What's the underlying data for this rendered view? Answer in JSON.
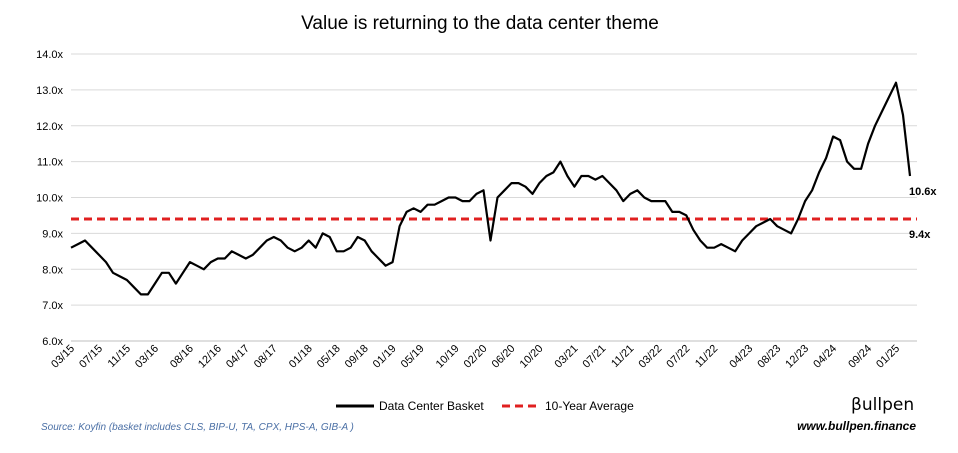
{
  "chart_data": {
    "type": "line",
    "title": "Value is returning to the data center theme",
    "xlabel": "",
    "ylabel": "",
    "y_ticks": [
      "6.0x",
      "7.0x",
      "8.0x",
      "9.0x",
      "10.0x",
      "11.0x",
      "12.0x",
      "13.0x",
      "14.0x"
    ],
    "ylim": [
      6.0,
      14.0
    ],
    "x_ticks": [
      "03/15",
      "07/15",
      "11/15",
      "03/16",
      "08/16",
      "12/16",
      "04/17",
      "08/17",
      "01/18",
      "05/18",
      "09/18",
      "01/19",
      "05/19",
      "10/19",
      "02/20",
      "06/20",
      "10/20",
      "03/21",
      "07/21",
      "11/21",
      "03/22",
      "07/22",
      "11/22",
      "04/23",
      "08/23",
      "12/23",
      "04/24",
      "09/24",
      "01/25"
    ],
    "x_range": [
      "2015-03",
      "2025-04"
    ],
    "grid": "horizontal",
    "legend_position": "bottom",
    "series": [
      {
        "name": "Data Center Basket",
        "color": "#000000",
        "style": "solid",
        "points": [
          [
            "2015-03",
            8.6
          ],
          [
            "2015-04",
            8.7
          ],
          [
            "2015-05",
            8.8
          ],
          [
            "2015-06",
            8.6
          ],
          [
            "2015-07",
            8.4
          ],
          [
            "2015-08",
            8.2
          ],
          [
            "2015-09",
            7.9
          ],
          [
            "2015-10",
            7.8
          ],
          [
            "2015-11",
            7.7
          ],
          [
            "2015-12",
            7.5
          ],
          [
            "2016-01",
            7.3
          ],
          [
            "2016-02",
            7.3
          ],
          [
            "2016-03",
            7.6
          ],
          [
            "2016-04",
            7.9
          ],
          [
            "2016-05",
            7.9
          ],
          [
            "2016-06",
            7.6
          ],
          [
            "2016-07",
            7.9
          ],
          [
            "2016-08",
            8.2
          ],
          [
            "2016-09",
            8.1
          ],
          [
            "2016-10",
            8.0
          ],
          [
            "2016-11",
            8.2
          ],
          [
            "2016-12",
            8.3
          ],
          [
            "2017-01",
            8.3
          ],
          [
            "2017-02",
            8.5
          ],
          [
            "2017-03",
            8.4
          ],
          [
            "2017-04",
            8.3
          ],
          [
            "2017-05",
            8.4
          ],
          [
            "2017-06",
            8.6
          ],
          [
            "2017-07",
            8.8
          ],
          [
            "2017-08",
            8.9
          ],
          [
            "2017-09",
            8.8
          ],
          [
            "2017-10",
            8.6
          ],
          [
            "2017-11",
            8.5
          ],
          [
            "2017-12",
            8.6
          ],
          [
            "2018-01",
            8.8
          ],
          [
            "2018-02",
            8.6
          ],
          [
            "2018-03",
            9.0
          ],
          [
            "2018-04",
            8.9
          ],
          [
            "2018-05",
            8.5
          ],
          [
            "2018-06",
            8.5
          ],
          [
            "2018-07",
            8.6
          ],
          [
            "2018-08",
            8.9
          ],
          [
            "2018-09",
            8.8
          ],
          [
            "2018-10",
            8.5
          ],
          [
            "2018-11",
            8.3
          ],
          [
            "2018-12",
            8.1
          ],
          [
            "2019-01",
            8.2
          ],
          [
            "2019-02",
            9.2
          ],
          [
            "2019-03",
            9.6
          ],
          [
            "2019-04",
            9.7
          ],
          [
            "2019-05",
            9.6
          ],
          [
            "2019-06",
            9.8
          ],
          [
            "2019-07",
            9.8
          ],
          [
            "2019-08",
            9.9
          ],
          [
            "2019-09",
            10.0
          ],
          [
            "2019-10",
            10.0
          ],
          [
            "2019-11",
            9.9
          ],
          [
            "2019-12",
            9.9
          ],
          [
            "2020-01",
            10.1
          ],
          [
            "2020-02",
            10.2
          ],
          [
            "2020-03",
            8.8
          ],
          [
            "2020-04",
            10.0
          ],
          [
            "2020-05",
            10.2
          ],
          [
            "2020-06",
            10.4
          ],
          [
            "2020-07",
            10.4
          ],
          [
            "2020-08",
            10.3
          ],
          [
            "2020-09",
            10.1
          ],
          [
            "2020-10",
            10.4
          ],
          [
            "2020-11",
            10.6
          ],
          [
            "2020-12",
            10.7
          ],
          [
            "2021-01",
            11.0
          ],
          [
            "2021-02",
            10.6
          ],
          [
            "2021-03",
            10.3
          ],
          [
            "2021-04",
            10.6
          ],
          [
            "2021-05",
            10.6
          ],
          [
            "2021-06",
            10.5
          ],
          [
            "2021-07",
            10.6
          ],
          [
            "2021-08",
            10.4
          ],
          [
            "2021-09",
            10.2
          ],
          [
            "2021-10",
            9.9
          ],
          [
            "2021-11",
            10.1
          ],
          [
            "2021-12",
            10.2
          ],
          [
            "2022-01",
            10.0
          ],
          [
            "2022-02",
            9.9
          ],
          [
            "2022-03",
            9.9
          ],
          [
            "2022-04",
            9.9
          ],
          [
            "2022-05",
            9.6
          ],
          [
            "2022-06",
            9.6
          ],
          [
            "2022-07",
            9.5
          ],
          [
            "2022-08",
            9.1
          ],
          [
            "2022-09",
            8.8
          ],
          [
            "2022-10",
            8.6
          ],
          [
            "2022-11",
            8.6
          ],
          [
            "2022-12",
            8.7
          ],
          [
            "2023-01",
            8.6
          ],
          [
            "2023-02",
            8.5
          ],
          [
            "2023-03",
            8.8
          ],
          [
            "2023-04",
            9.0
          ],
          [
            "2023-05",
            9.2
          ],
          [
            "2023-06",
            9.3
          ],
          [
            "2023-07",
            9.4
          ],
          [
            "2023-08",
            9.2
          ],
          [
            "2023-09",
            9.1
          ],
          [
            "2023-10",
            9.0
          ],
          [
            "2023-11",
            9.4
          ],
          [
            "2023-12",
            9.9
          ],
          [
            "2024-01",
            10.2
          ],
          [
            "2024-02",
            10.7
          ],
          [
            "2024-03",
            11.1
          ],
          [
            "2024-04",
            11.7
          ],
          [
            "2024-05",
            11.6
          ],
          [
            "2024-06",
            11.0
          ],
          [
            "2024-07",
            10.8
          ],
          [
            "2024-08",
            10.8
          ],
          [
            "2024-09",
            11.5
          ],
          [
            "2024-10",
            12.0
          ],
          [
            "2024-11",
            12.4
          ],
          [
            "2024-12",
            12.8
          ],
          [
            "2025-01",
            13.2
          ],
          [
            "2025-02",
            12.3
          ],
          [
            "2025-03",
            10.6
          ]
        ]
      },
      {
        "name": "10-Year Average",
        "color": "#e02020",
        "style": "dashed",
        "value": 9.4
      }
    ],
    "annotations": [
      "10.6x",
      "9.4x"
    ]
  },
  "footer": {
    "source": "Source: Koyfin (basket includes CLS, BIP-U, TA, CPX, HPS-A, GIB-A )",
    "brand": "βullpen",
    "website": "www.bullpen.finance"
  }
}
